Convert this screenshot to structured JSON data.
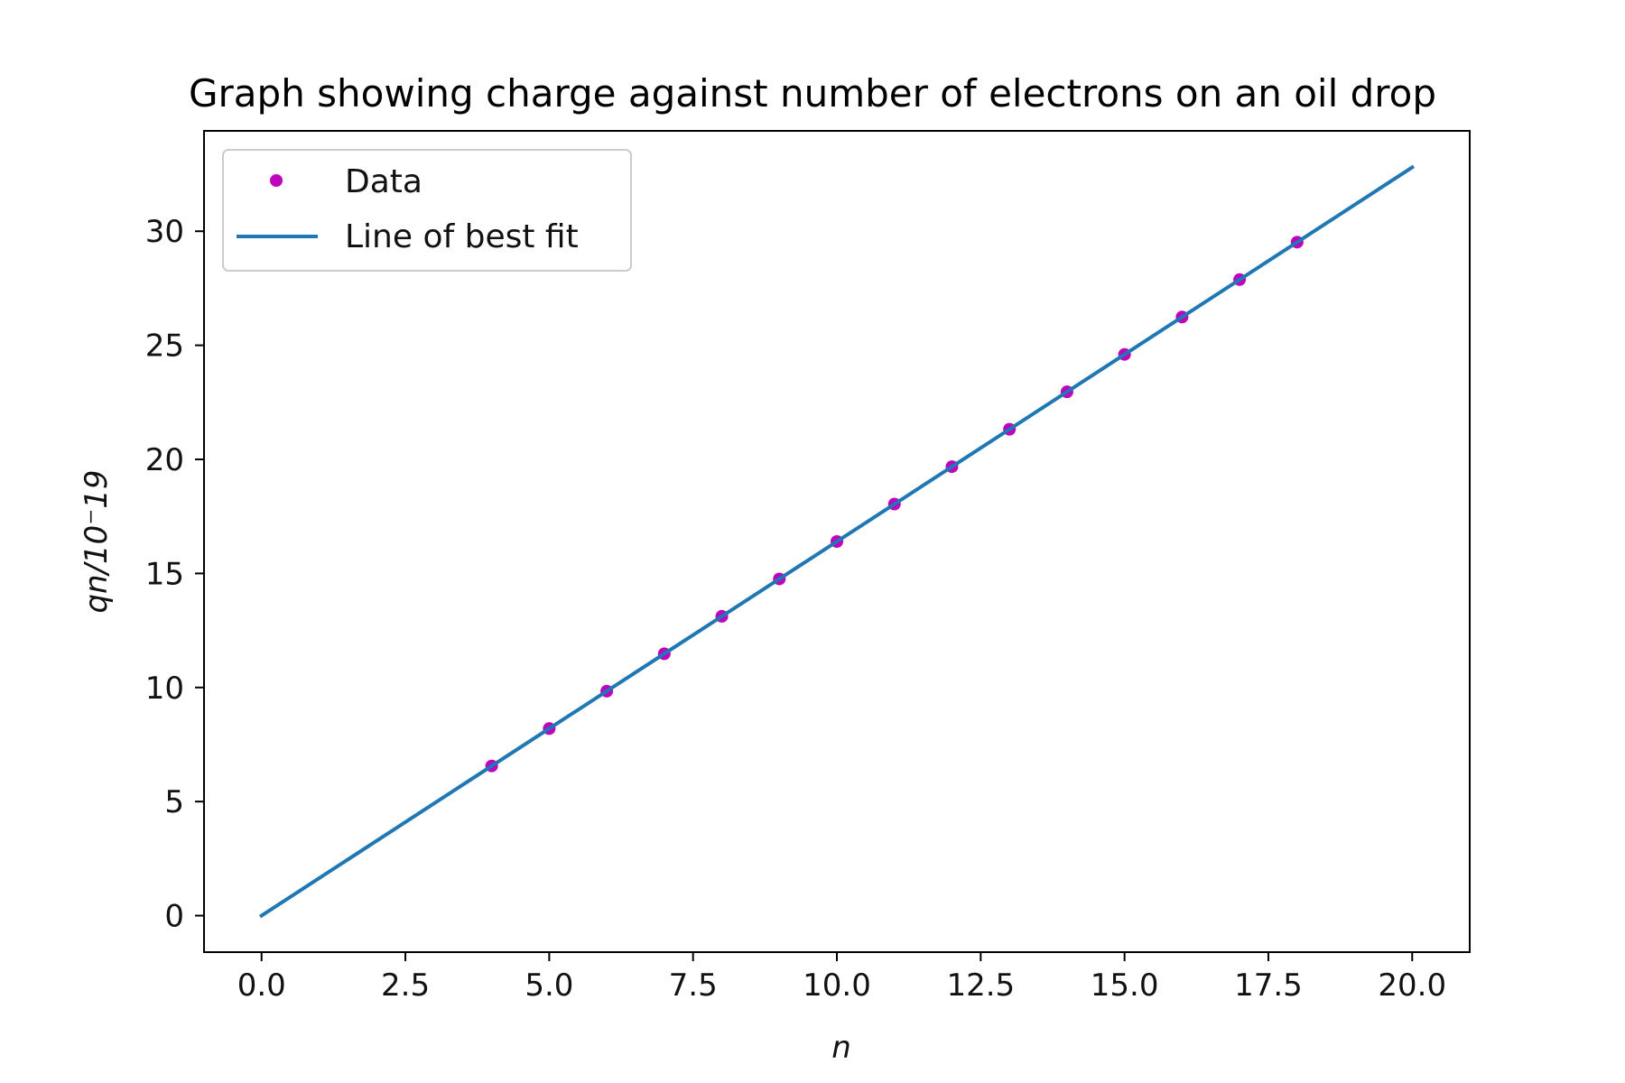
{
  "chart_data": {
    "type": "scatter",
    "title": "Graph showing charge against number of electrons on an oil drop",
    "xlabel": "n",
    "ylabel": "qn/10⁻19",
    "xlim": [
      -1.0,
      21.0
    ],
    "ylim": [
      -1.6,
      34.4
    ],
    "xticks": [
      0.0,
      2.5,
      5.0,
      7.5,
      10.0,
      12.5,
      15.0,
      17.5,
      20.0
    ],
    "xtick_labels": [
      "0.0",
      "2.5",
      "5.0",
      "7.5",
      "10.0",
      "12.5",
      "15.0",
      "17.5",
      "20.0"
    ],
    "yticks": [
      0,
      5,
      10,
      15,
      20,
      25,
      30
    ],
    "ytick_labels": [
      "0",
      "5",
      "10",
      "15",
      "20",
      "25",
      "30"
    ],
    "grid": false,
    "legend": {
      "placement": "top-left"
    },
    "series": [
      {
        "name": "Data",
        "kind": "points",
        "color": "#bf00bf",
        "x": [
          4,
          5,
          6,
          7,
          8,
          9,
          10,
          11,
          12,
          13,
          14,
          15,
          16,
          17,
          18
        ],
        "y": [
          6.56,
          8.2,
          9.84,
          11.48,
          13.12,
          14.76,
          16.4,
          18.04,
          19.68,
          21.32,
          22.96,
          24.6,
          26.24,
          27.88,
          29.52
        ]
      },
      {
        "name": "Line of best fit",
        "kind": "line",
        "color": "#1f77b4",
        "x": [
          0,
          20
        ],
        "y": [
          0,
          32.8
        ]
      }
    ]
  }
}
